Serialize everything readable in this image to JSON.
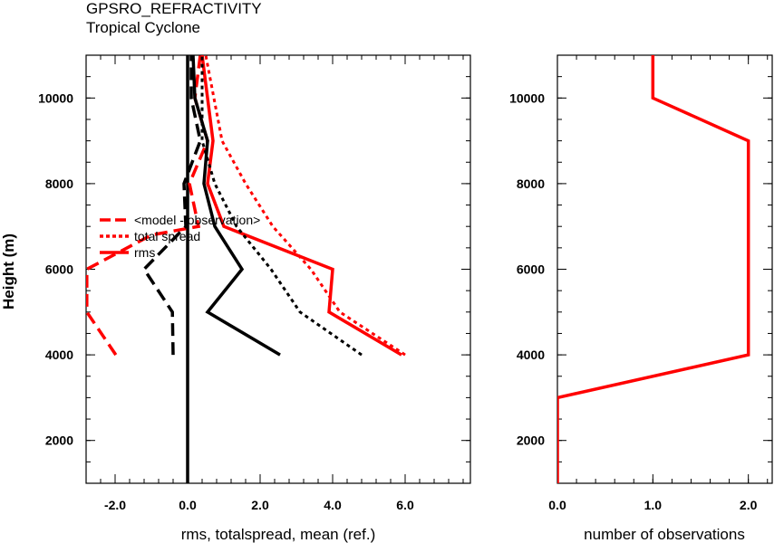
{
  "title": "GPSRO_REFRACTIVITY",
  "subtitle": "Tropical Cyclone",
  "colors": {
    "red": "#ff0000",
    "black": "#000000"
  },
  "chart_data": [
    {
      "type": "line",
      "xlabel": "rms, totalspread, mean (ref.)",
      "ylabel": "Height (m)",
      "xlim": [
        -2.8,
        7.8
      ],
      "ylim": [
        1000,
        11000
      ],
      "xticks": [
        -2.0,
        0.0,
        2.0,
        4.0,
        6.0
      ],
      "xtick_labels": [
        "-2.0",
        "0.0",
        "2.0",
        "4.0",
        "6.0"
      ],
      "yticks": [
        2000,
        4000,
        6000,
        8000,
        10000
      ],
      "ytick_labels": [
        "2000",
        "4000",
        "6000",
        "8000",
        "10000"
      ],
      "legend": {
        "position": "left-middle",
        "entries": [
          {
            "label": "<model - observation>",
            "style": "dashed",
            "color": "#ff0000"
          },
          {
            "label": "total spread",
            "style": "dotted",
            "color": "#ff0000"
          },
          {
            "label": "rms",
            "style": "solid",
            "color": "#ff0000"
          }
        ]
      },
      "series": [
        {
          "name": "<model - observation>",
          "color": "#ff0000",
          "style": "dashed",
          "x": [
            -1.98,
            -2.78,
            -2.78,
            -1.0,
            0.3,
            0.05,
            0.55,
            0.2,
            0.35
          ],
          "y": [
            4000,
            5000,
            6000,
            6800,
            7000,
            8000,
            9000,
            10000,
            11000
          ]
        },
        {
          "name": "total spread",
          "color": "#ff0000",
          "style": "dotted",
          "x": [
            6.0,
            4.2,
            3.4,
            2.35,
            1.6,
            0.95,
            0.5
          ],
          "y": [
            4000,
            5000,
            6000,
            7000,
            8000,
            9000,
            11000
          ]
        },
        {
          "name": "rms",
          "color": "#ff0000",
          "style": "solid",
          "x": [
            5.9,
            3.9,
            4.0,
            1.0,
            0.55,
            0.7,
            0.55,
            0.4
          ],
          "y": [
            4000,
            5000,
            6000,
            7000,
            8000,
            9000,
            10000,
            11000
          ]
        },
        {
          "name": "",
          "color": "#000000",
          "style": "dashed",
          "x": [
            -0.4,
            -0.42,
            -1.2,
            -0.05,
            -0.1,
            0.35,
            0.1,
            0.1
          ],
          "y": [
            4000,
            5000,
            6000,
            7000,
            8000,
            9000,
            10000,
            11000
          ]
        },
        {
          "name": "",
          "color": "#000000",
          "style": "dotted",
          "x": [
            4.8,
            3.1,
            2.3,
            1.35,
            0.75,
            0.4,
            0.4
          ],
          "y": [
            4000,
            5000,
            6000,
            7000,
            8000,
            9000,
            11000
          ]
        },
        {
          "name": "",
          "color": "#000000",
          "style": "solid",
          "x": [
            2.55,
            0.55,
            1.5,
            0.75,
            0.45,
            0.55,
            0.2,
            0.15
          ],
          "y": [
            4000,
            5000,
            6000,
            7000,
            8000,
            9000,
            10000,
            11000
          ]
        }
      ],
      "reference_line": {
        "x": 0.0,
        "color": "#000000"
      }
    },
    {
      "type": "line",
      "xlabel": "number of observations",
      "ylabel": "",
      "xlim": [
        0,
        2.25
      ],
      "ylim": [
        1000,
        11000
      ],
      "xticks": [
        0.0,
        1.0,
        2.0
      ],
      "xtick_labels": [
        "0.0",
        "1.0",
        "2.0"
      ],
      "yticks": [
        2000,
        4000,
        6000,
        8000,
        10000
      ],
      "ytick_labels": [
        "2000",
        "4000",
        "6000",
        "8000",
        "10000"
      ],
      "series": [
        {
          "name": "",
          "color": "#ff0000",
          "style": "solid",
          "x": [
            0,
            0,
            2,
            2,
            1,
            1
          ],
          "y": [
            1000,
            3000,
            4000,
            9000,
            10000,
            11000
          ]
        }
      ]
    }
  ]
}
